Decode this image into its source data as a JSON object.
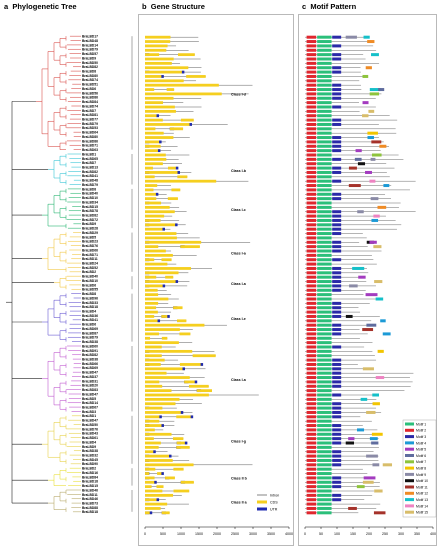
{
  "panels": {
    "a": {
      "label": "a",
      "title": "Phylogenetic Tree"
    },
    "b": {
      "label": "b",
      "title": "Gene Structure"
    },
    "c": {
      "label": "c",
      "title": "Motif Pattern"
    }
  },
  "genes": [
    "BraLBD17",
    "BraLBD48",
    "BraLBD14",
    "BraLBD79",
    "BraLBD57",
    "BraLBD9",
    "BraLBD50",
    "BraLBD82",
    "BraLBD8",
    "BraLBD80",
    "BraLBD74",
    "BraLBD51",
    "BraLBD6",
    "BraLBD56",
    "BraLBD86",
    "BraLBD84",
    "BraLBD74",
    "BraLBD7",
    "BraLBD81",
    "BraLBD77",
    "BraLBD79",
    "BraLBD53",
    "BraLBD64",
    "BraLBD80",
    "BraLBD86",
    "BraLBD71",
    "BraLBD63",
    "BraLBD1",
    "BraLBD65",
    "BraLBD7",
    "BraLBD13",
    "BraLBD82",
    "BraLBD41",
    "BraLBD48",
    "BraLBD79",
    "BraLBD8",
    "BraLBD40",
    "BraLBD10",
    "BraLBD34",
    "BraLBD15",
    "BraLBD78",
    "BraLBD82",
    "BraLBD72",
    "BraLBD9",
    "BraLBD28",
    "BraLBD29",
    "BraLBD5",
    "BraLBD23",
    "BraLBD76",
    "BraLBD66",
    "BraLBD71",
    "BraLBD11",
    "BraLBD24",
    "BraLBD52",
    "BraLBD2",
    "BraLBD40",
    "BraLBD10",
    "BraLBD6",
    "BraLBD55",
    "BraLBD8",
    "BraLBD96",
    "BraLBD33",
    "BraLBD18",
    "BraLBD4",
    "BraLBD36",
    "BraLBD41",
    "BraLBD6",
    "BraLBD69",
    "BraLBD87",
    "BraLBD79",
    "BraLBD38",
    "BraLBD60",
    "BraLBD91",
    "BraLBD82",
    "BraLBD38",
    "BraLBD66",
    "BraLBD69",
    "BraLBD47",
    "BraLBD37",
    "BraLBD31",
    "BraLBD20",
    "BraLBD83",
    "BraLBD47",
    "BraLBD5",
    "BraLBD14",
    "BraLBD67",
    "BraLBD3",
    "BraLBD1",
    "BraLBD47",
    "BraLBD50",
    "BraLBD76",
    "BraLBD43",
    "BraLBD61",
    "BraLBD4",
    "BraLBD9",
    "BraLBD38",
    "BraLBD32",
    "BraLBD45",
    "BraLBD90",
    "BraLBD2",
    "BraLBD16",
    "BraLBD84",
    "BraLBD18",
    "BraLBD15",
    "BraLBD46",
    "BraLBD11",
    "BraLBD46",
    "BraLBD73",
    "BraLBD88",
    "BraLBD18"
  ],
  "classes": [
    {
      "name": "Class I-d",
      "color": "#d9534f"
    },
    {
      "name": "Class I-b",
      "color": "#39c6d6"
    },
    {
      "name": "Class I-c",
      "color": "#2bb673"
    },
    {
      "name": "Class I-a",
      "color": "#f2c744"
    },
    {
      "name": "Class I-e",
      "color": "#6b5bd2"
    },
    {
      "name": "Class I-b",
      "color": "#c05ad0"
    },
    {
      "name": "Class I-a",
      "color": "#9bd64a"
    },
    {
      "name": "Class I-g",
      "color": "#e6d14a"
    },
    {
      "name": "Class II b",
      "color": "#e8df3a"
    },
    {
      "name": "Class II a",
      "color": "#b8a96b"
    }
  ],
  "gene_structure_legend": [
    {
      "label": "Intron",
      "color": "#333333"
    },
    {
      "label": "CDS",
      "color": "#f5cf1f"
    },
    {
      "label": "UTR",
      "color": "#1f2bb0"
    }
  ],
  "gene_axis": {
    "ticks": [
      "0",
      "500",
      "1000",
      "1500",
      "2000",
      "2500",
      "3000",
      "3500",
      "4000"
    ],
    "max": 4000
  },
  "motif_axis": {
    "ticks": [
      "0",
      "50",
      "100",
      "150",
      "200",
      "250",
      "300",
      "350",
      "400"
    ],
    "max": 400
  },
  "motif_legend": [
    {
      "label": "Motif 1",
      "color": "#2bbf7a"
    },
    {
      "label": "Motif 2",
      "color": "#e0262e"
    },
    {
      "label": "Motif 3",
      "color": "#2a2aa8"
    },
    {
      "label": "Motif 4",
      "color": "#1c9ad6"
    },
    {
      "label": "Motif 5",
      "color": "#a33bbf"
    },
    {
      "label": "Motif 6",
      "color": "#5f6c9e"
    },
    {
      "label": "Motif 7",
      "color": "#8ec43c"
    },
    {
      "label": "Motif 8",
      "color": "#f2c500"
    },
    {
      "label": "Motif 9",
      "color": "#8a8aa6"
    },
    {
      "label": "Motif 10",
      "color": "#111111"
    },
    {
      "label": "Motif 11",
      "color": "#a5322a"
    },
    {
      "label": "Motif 12",
      "color": "#ef8b25"
    },
    {
      "label": "Motif 13",
      "color": "#15c0c9"
    },
    {
      "label": "Motif 14",
      "color": "#ee83c2"
    },
    {
      "label": "Motif 15",
      "color": "#d8bd6a"
    }
  ]
}
